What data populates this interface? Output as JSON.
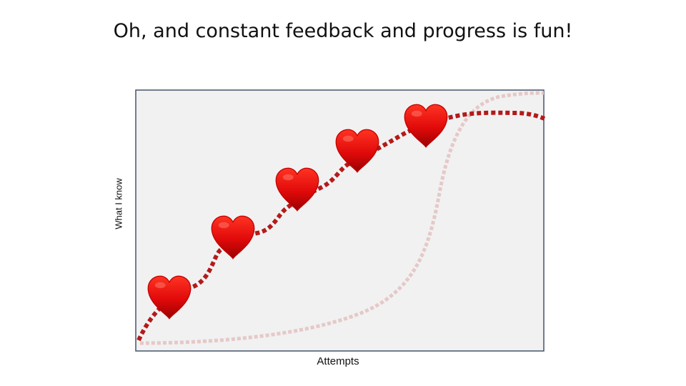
{
  "slide": {
    "title": "Oh, and constant feedback and progress is fun!"
  },
  "diagram": {
    "y_axis_label": "What I know",
    "x_axis_label": "Attempts",
    "colors": {
      "panel_fill": "#f1f1f1",
      "panel_border": "#44546a",
      "progress_curve": "#b41a1a",
      "background_curve": "#e6c8c8",
      "heart_top": "#ff2a1a",
      "heart_bottom": "#a80000"
    },
    "markers": {
      "icon": "heart-icon",
      "count": 5
    }
  }
}
